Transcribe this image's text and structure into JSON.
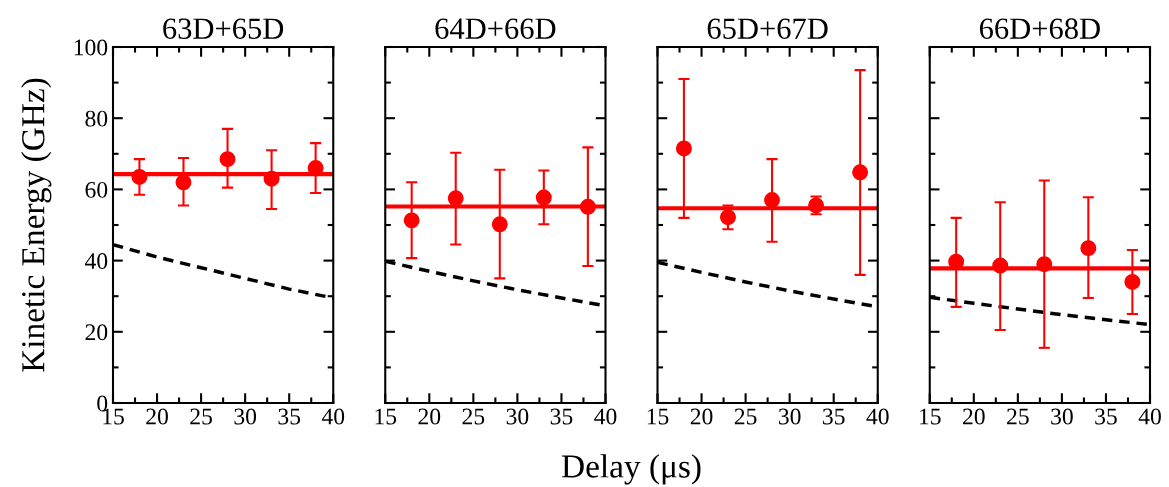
{
  "chart_data": [
    {
      "type": "scatter",
      "title": "63D+65D",
      "ylabel": "Kinetic Energy (GHz)",
      "xlim": [
        15,
        40
      ],
      "xticks": [
        15,
        20,
        25,
        30,
        35,
        40
      ],
      "ylim": [
        0,
        100
      ],
      "yticks": [
        0,
        20,
        40,
        60,
        80,
        100
      ],
      "series": [
        {
          "color": "#ff0000",
          "marker": "circle",
          "x": [
            18,
            23,
            28,
            33,
            38
          ],
          "values": [
            63.5,
            62,
            68.5,
            63,
            66
          ],
          "errors": [
            [
              58.5,
              68.5
            ],
            [
              55.5,
              68.8
            ],
            [
              60.5,
              77
            ],
            [
              54.5,
              71
            ],
            [
              59,
              73
            ]
          ]
        },
        {
          "type": "line",
          "color": "#ff0000",
          "line_style": "solid",
          "x": [
            15,
            40
          ],
          "values": [
            64.3,
            64.3
          ]
        },
        {
          "type": "line",
          "color": "#000000",
          "line_style": "dashed",
          "x": [
            15,
            20,
            25,
            30,
            35,
            40
          ],
          "values": [
            44.5,
            41,
            38,
            35,
            32,
            29.5
          ]
        }
      ]
    },
    {
      "type": "scatter",
      "title": "64D+66D",
      "annotations": [
        "Delay (μs)"
      ],
      "xlim": [
        15,
        40
      ],
      "xticks": [
        15,
        20,
        25,
        30,
        35,
        40
      ],
      "ylim": [
        0,
        100
      ],
      "yticks": [
        0,
        20,
        40,
        60,
        80,
        100
      ],
      "tick_labels": "x",
      "series": [
        {
          "color": "#ff0000",
          "marker": "circle",
          "x": [
            18,
            23,
            28,
            33,
            38
          ],
          "values": [
            51.3,
            57.5,
            50.2,
            57.7,
            55.1
          ],
          "errors": [
            [
              40.7,
              62
            ],
            [
              44.5,
              70.3
            ],
            [
              35,
              65.5
            ],
            [
              50.2,
              65.3
            ],
            [
              38.5,
              71.8
            ]
          ]
        },
        {
          "type": "line",
          "color": "#ff0000",
          "line_style": "solid",
          "x": [
            15,
            40
          ],
          "values": [
            55.2,
            55.2
          ]
        },
        {
          "type": "line",
          "color": "#000000",
          "line_style": "dashed",
          "x": [
            15,
            20,
            25,
            30,
            35,
            40
          ],
          "values": [
            39.8,
            37,
            34.3,
            31.8,
            29.5,
            27.3
          ]
        }
      ]
    },
    {
      "type": "scatter",
      "title": "65D+67D",
      "xlim": [
        15,
        40
      ],
      "xticks": [
        15,
        20,
        25,
        30,
        35,
        40
      ],
      "ylim": [
        0,
        100
      ],
      "yticks": [
        0,
        20,
        40,
        60,
        80,
        100
      ],
      "tick_labels": "x",
      "series": [
        {
          "color": "#ff0000",
          "marker": "circle",
          "x": [
            18,
            23,
            28,
            33,
            38
          ],
          "values": [
            71.5,
            52.2,
            57,
            55.5,
            64.8
          ],
          "errors": [
            [
              52,
              91
            ],
            [
              48.8,
              55.5
            ],
            [
              45.3,
              68.5
            ],
            [
              53,
              58
            ],
            [
              36,
              93.5
            ]
          ]
        },
        {
          "type": "line",
          "color": "#ff0000",
          "line_style": "solid",
          "x": [
            15,
            40
          ],
          "values": [
            54.7,
            54.7
          ]
        },
        {
          "type": "line",
          "color": "#000000",
          "line_style": "dashed",
          "x": [
            15,
            20,
            25,
            30,
            35,
            40
          ],
          "values": [
            39.5,
            36.7,
            34,
            31.5,
            29.2,
            27
          ]
        }
      ]
    },
    {
      "type": "scatter",
      "title": "66D+68D",
      "xlim": [
        15,
        40
      ],
      "xticks": [
        15,
        20,
        25,
        30,
        35,
        40
      ],
      "ylim": [
        0,
        100
      ],
      "yticks": [
        0,
        20,
        40,
        60,
        80,
        100
      ],
      "tick_labels": "x",
      "series": [
        {
          "color": "#ff0000",
          "marker": "circle",
          "x": [
            18,
            23,
            28,
            33,
            38
          ],
          "values": [
            39.7,
            38.6,
            39,
            43.5,
            34
          ],
          "errors": [
            [
              27,
              52
            ],
            [
              20.5,
              56.4
            ],
            [
              15.5,
              62.5
            ],
            [
              29.5,
              57.8
            ],
            [
              25,
              43
            ]
          ]
        },
        {
          "type": "line",
          "color": "#ff0000",
          "line_style": "solid",
          "x": [
            15,
            40
          ],
          "values": [
            37.8,
            37.8
          ]
        },
        {
          "type": "line",
          "color": "#000000",
          "line_style": "dashed",
          "x": [
            15,
            20,
            25,
            30,
            35,
            40
          ],
          "values": [
            29.7,
            28,
            26.4,
            24.8,
            23.4,
            22
          ]
        }
      ]
    }
  ]
}
